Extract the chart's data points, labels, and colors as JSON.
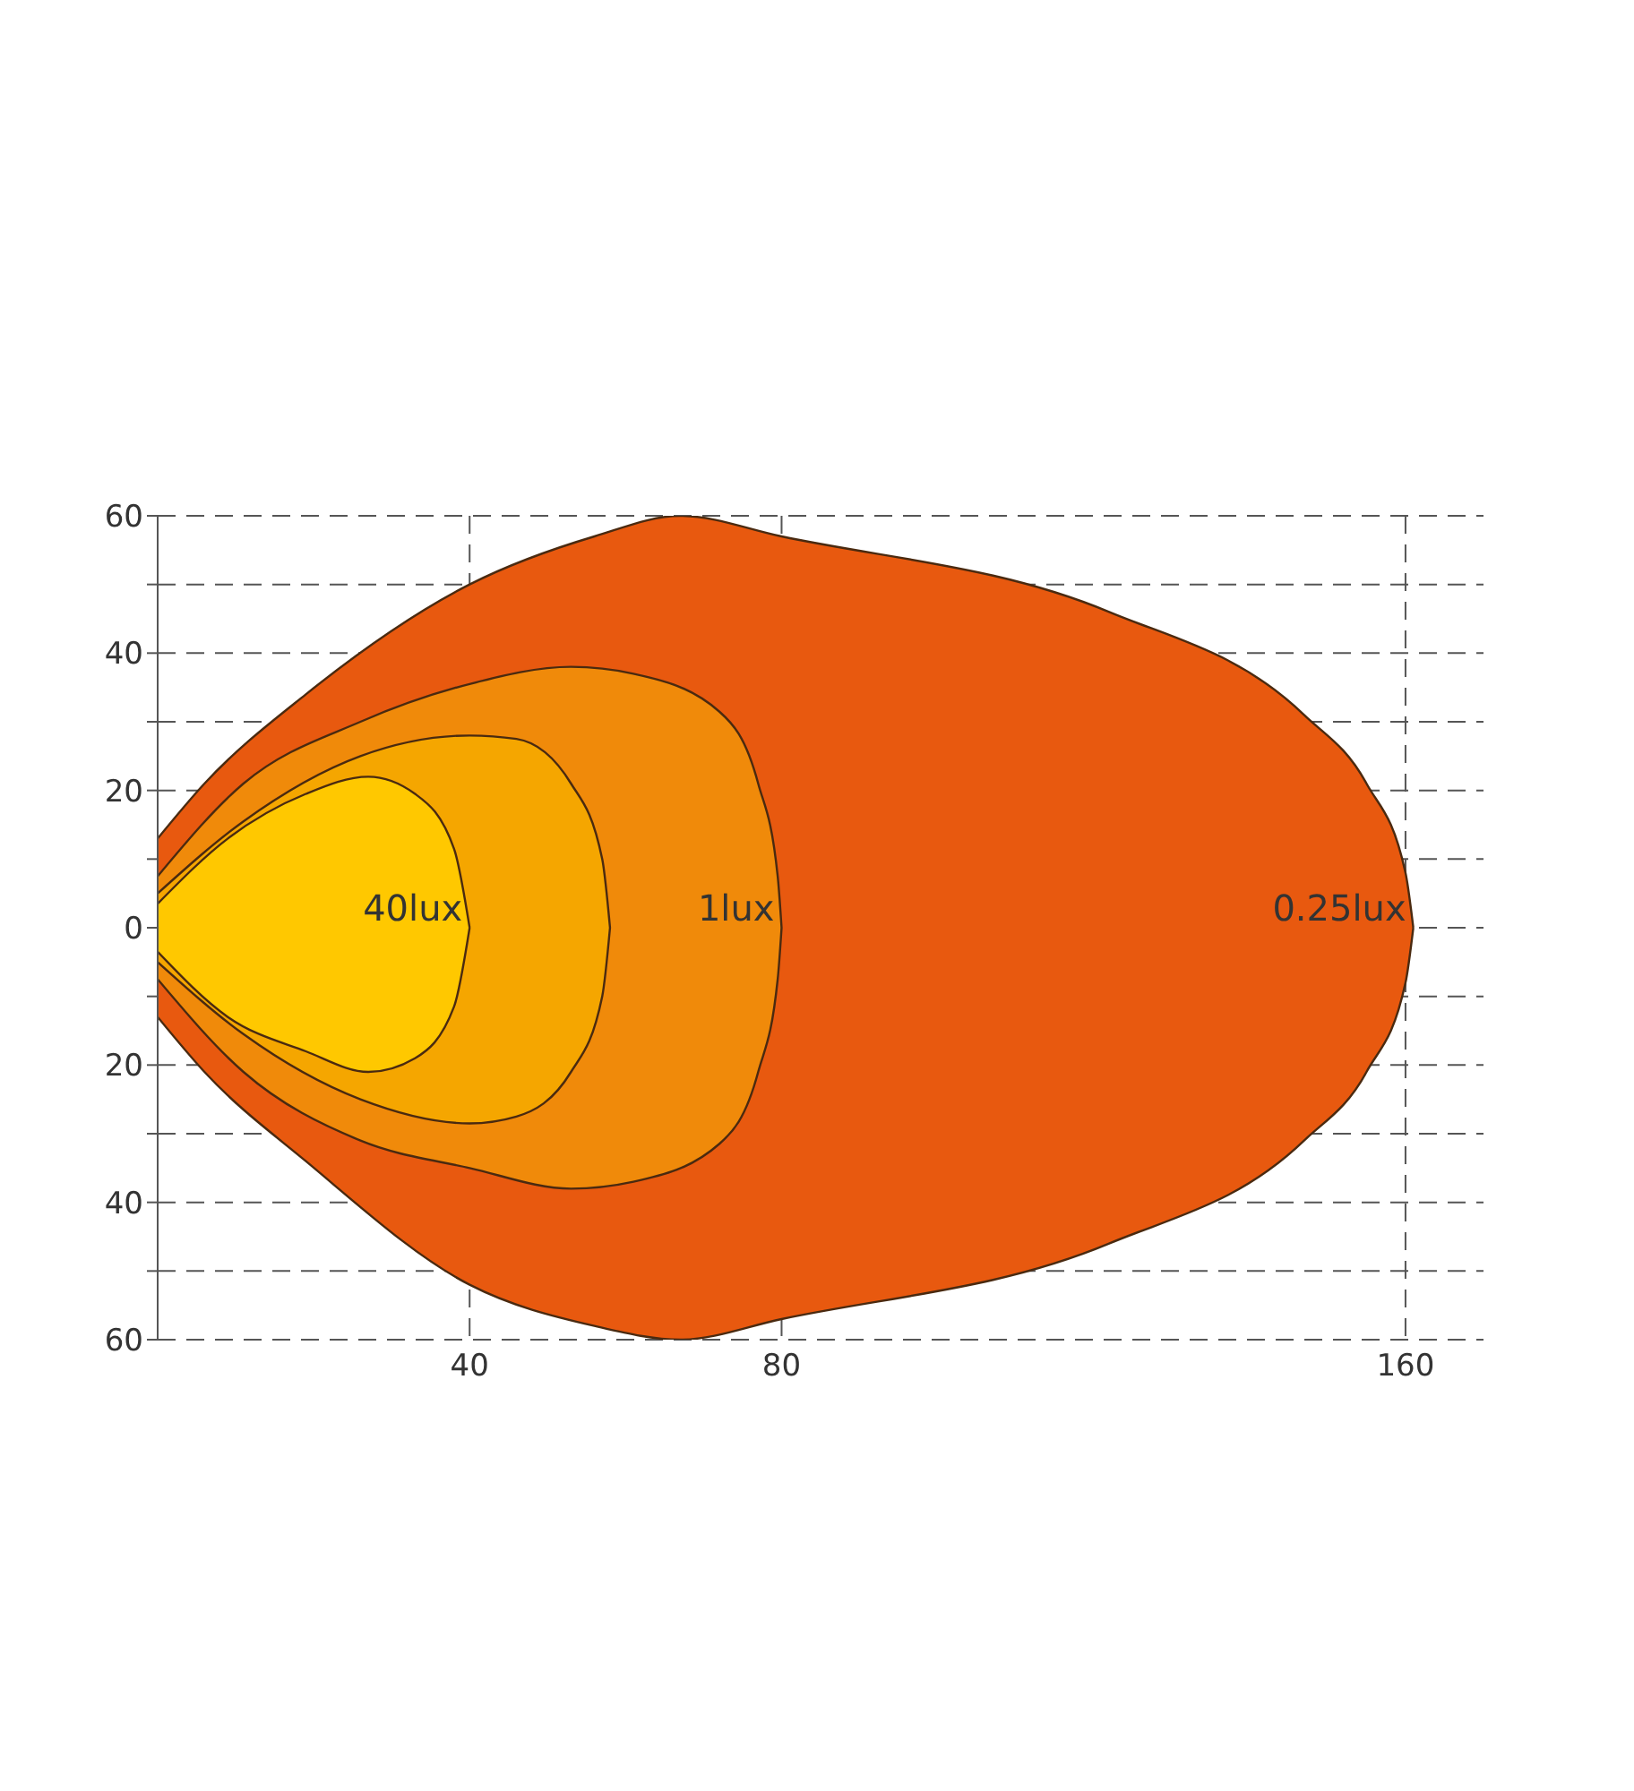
{
  "chart_data": {
    "type": "area",
    "xlim": [
      0,
      170
    ],
    "xticks": [
      40,
      80,
      160
    ],
    "ylim": [
      -60,
      60
    ],
    "yticks": [
      {
        "value": -60,
        "label": "60"
      },
      {
        "value": -50,
        "label": null
      },
      {
        "value": -40,
        "label": "40"
      },
      {
        "value": -30,
        "label": null
      },
      {
        "value": -20,
        "label": "20"
      },
      {
        "value": -10,
        "label": null
      },
      0,
      {
        "value": 10,
        "label": null
      },
      20,
      {
        "value": 30,
        "label": null
      },
      40,
      {
        "value": 50,
        "label": null
      },
      60
    ],
    "grid": true,
    "legend": false,
    "series": [
      {
        "name": "0.25lux",
        "color": "#e8590f",
        "x": [
          0,
          6,
          19,
          40,
          56,
          67,
          80,
          122,
          147,
          155,
          160,
          161
        ],
        "values": [
          13,
          21,
          34,
          50,
          57,
          60,
          57,
          46,
          31,
          21,
          8,
          0
        ]
      },
      {
        "color": "#e8590f",
        "x": [
          0,
          6,
          19,
          40,
          56,
          67,
          80,
          122,
          147,
          155,
          160,
          161
        ],
        "values": [
          -13,
          -21,
          -34,
          -52,
          -58,
          -60,
          -57,
          -46,
          -31,
          -21,
          -8,
          0
        ]
      },
      {
        "name": "1lux",
        "color": "#f08a0a",
        "x": [
          0,
          11,
          26,
          40,
          53,
          61,
          72,
          77,
          79.5,
          80
        ],
        "values": [
          7.5,
          21,
          30,
          35.5,
          38,
          37,
          31.5,
          21,
          7.5,
          0
        ]
      },
      {
        "color": "#f08a0a",
        "x": [
          0,
          11,
          26,
          40,
          53,
          61,
          72,
          77,
          79.5,
          80
        ],
        "values": [
          -7.5,
          -21,
          -31,
          -35,
          -38,
          -37,
          -31.5,
          -21,
          -7.5,
          0
        ]
      },
      {
        "color": "#f5a600",
        "x": [
          0,
          11,
          26,
          40,
          46,
          53,
          57,
          58
        ],
        "values": [
          5,
          15.5,
          25,
          28,
          27.5,
          21,
          10,
          0
        ]
      },
      {
        "color": "#f5a600",
        "x": [
          0,
          11,
          26,
          40,
          46,
          53,
          57,
          58
        ],
        "values": [
          -5,
          -15.5,
          -25,
          -28.5,
          -27.5,
          -21,
          -10,
          0
        ]
      },
      {
        "name": "40lux",
        "color": "#ffc800",
        "x": [
          0,
          9,
          19,
          27,
          33,
          38,
          40
        ],
        "values": [
          3.5,
          13,
          19.5,
          22,
          19.5,
          11.5,
          0
        ]
      },
      {
        "color": "#ffc800",
        "x": [
          0,
          9,
          19,
          27,
          33,
          38,
          40
        ],
        "values": [
          -3.5,
          -13,
          -18,
          -21,
          -19,
          -11.5,
          0
        ]
      }
    ]
  }
}
